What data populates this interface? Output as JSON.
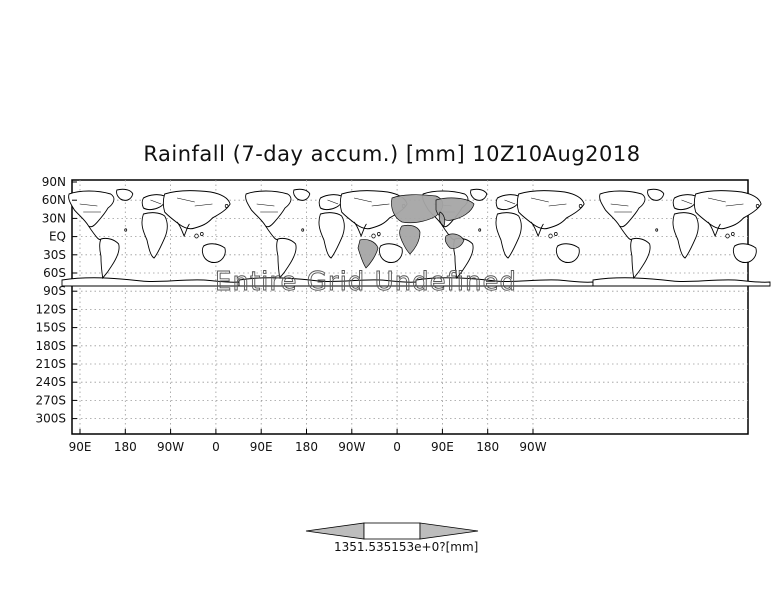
{
  "title": "Rainfall (7-day accum.) [mm] 10Z10Aug2018",
  "lat_labels": [
    "90N",
    "60N",
    "30N",
    "EQ",
    "30S",
    "60S",
    "90S",
    "120S",
    "150S",
    "180S",
    "210S",
    "240S",
    "270S",
    "300S"
  ],
  "lon_labels": [
    "90E",
    "180",
    "90W",
    "0",
    "90E",
    "180",
    "90W",
    "0",
    "90E",
    "180",
    "90W"
  ],
  "overlay_text": "Entire Grid Undefined",
  "colorbar": {
    "label": "1351.535153e+0?[mm]",
    "colors": {
      "left": "#bdbdbd",
      "middle": "#ffffff",
      "right": "#bdbdbd"
    }
  },
  "colors": {
    "land": "#ffffff",
    "rain_shade": "#a6a6a6",
    "coast": "#000000",
    "grid": "#9a9a9a"
  }
}
